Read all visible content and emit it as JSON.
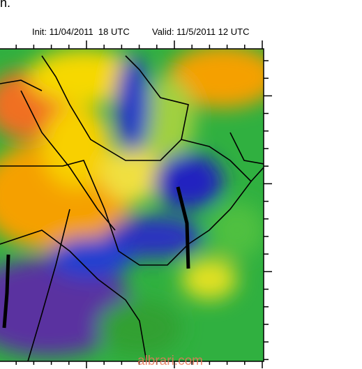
{
  "header": {
    "title_fragment": "n.",
    "init": "Init: 11/04/2011  18 UTC",
    "valid": "Valid: 11/5/2011 12 UTC"
  },
  "watermark": "albrari.com"
}
